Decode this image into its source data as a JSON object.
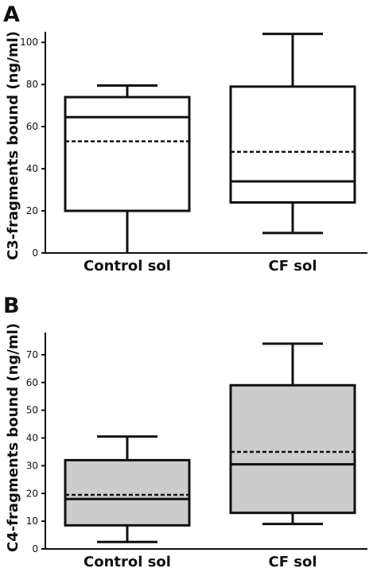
{
  "chart_data": [
    {
      "type": "box",
      "panel_label": "A",
      "ylabel": "C3-fragments bound (ng/ml)",
      "ylim": [
        0,
        105
      ],
      "yticks": [
        "0",
        "20",
        "40",
        "60",
        "80",
        "100"
      ],
      "box_fill": "#ffffff",
      "categories": [
        "Control sol",
        "CF sol"
      ],
      "boxes": [
        {
          "category": "Control sol",
          "min": 0,
          "q1": 20,
          "median": 64.5,
          "mean": 53,
          "q3": 74,
          "max": 79.5
        },
        {
          "category": "CF sol",
          "min": 9.5,
          "q1": 24,
          "median": 34,
          "mean": 48,
          "q3": 79,
          "max": 104
        }
      ]
    },
    {
      "type": "box",
      "panel_label": "B",
      "ylabel": "C4-fragments bound (ng/ml)",
      "ylim": [
        0,
        78
      ],
      "yticks": [
        "0",
        "10",
        "20",
        "30",
        "40",
        "50",
        "60",
        "70"
      ],
      "box_fill": "#cccccc",
      "categories": [
        "Control sol",
        "CF sol"
      ],
      "boxes": [
        {
          "category": "Control sol",
          "min": 2.5,
          "q1": 8.5,
          "median": 18,
          "mean": 19.5,
          "q3": 32,
          "max": 40.5
        },
        {
          "category": "CF sol",
          "min": 9,
          "q1": 13,
          "median": 30.5,
          "mean": 35,
          "q3": 59,
          "max": 74
        }
      ]
    }
  ]
}
